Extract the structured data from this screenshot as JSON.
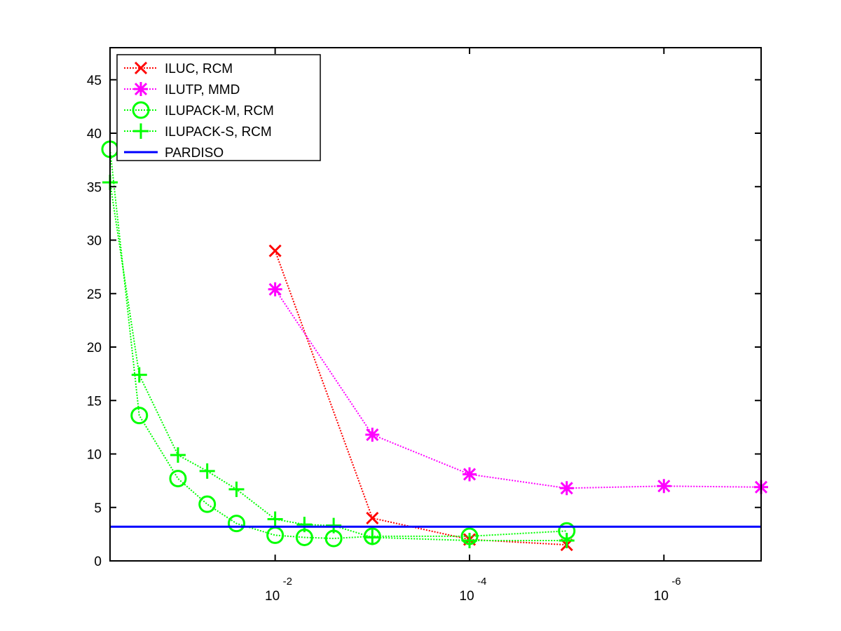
{
  "chart_data": {
    "type": "line",
    "x_scale": "log",
    "x_direction": "reversed",
    "xlim": [
      0.5,
      1e-07
    ],
    "ylim": [
      0,
      48
    ],
    "grid": false,
    "legend_placement": "top-left",
    "x_ticks": [
      {
        "value": 0.01,
        "base": "10",
        "exp": "-2"
      },
      {
        "value": 0.0001,
        "base": "10",
        "exp": "-4"
      },
      {
        "value": 1e-06,
        "base": "10",
        "exp": "-6"
      }
    ],
    "y_ticks": [
      0,
      5,
      10,
      15,
      20,
      25,
      30,
      35,
      40,
      45
    ],
    "series": [
      {
        "name": "ILUC, RCM",
        "color": "#ff0000",
        "marker": "x",
        "line": "dotted",
        "x": [
          0.01,
          0.001,
          0.0001,
          1e-05
        ],
        "y": [
          29.0,
          4.0,
          2.0,
          1.5
        ]
      },
      {
        "name": "ILUTP, MMD",
        "color": "#ff00ff",
        "marker": "star",
        "line": "dotted",
        "x": [
          0.01,
          0.001,
          0.0001,
          1e-05,
          1e-06,
          1e-07
        ],
        "y": [
          25.4,
          11.8,
          8.1,
          6.8,
          7.0,
          6.9
        ]
      },
      {
        "name": "ILUPACK-M, RCM",
        "color": "#00ff00",
        "marker": "circle",
        "line": "dotted",
        "x": [
          0.5,
          0.25,
          0.1,
          0.05,
          0.025,
          0.01,
          0.005,
          0.0025,
          0.001,
          0.0001,
          1e-05
        ],
        "y": [
          38.5,
          13.6,
          7.7,
          5.3,
          3.5,
          2.4,
          2.2,
          2.1,
          2.3,
          2.3,
          2.8
        ]
      },
      {
        "name": "ILUPACK-S, RCM",
        "color": "#00ff00",
        "marker": "plus",
        "line": "dotted",
        "x": [
          0.5,
          0.25,
          0.1,
          0.05,
          0.025,
          0.01,
          0.005,
          0.0025,
          0.001,
          0.0001,
          1e-05
        ],
        "y": [
          35.4,
          17.4,
          9.9,
          8.4,
          6.7,
          3.9,
          3.4,
          3.3,
          2.2,
          1.9,
          1.9
        ]
      },
      {
        "name": "PARDISO",
        "color": "#0000ff",
        "marker": "none",
        "line": "solid",
        "x": [
          0.5,
          1e-07
        ],
        "y": [
          3.2,
          3.2
        ]
      }
    ]
  }
}
